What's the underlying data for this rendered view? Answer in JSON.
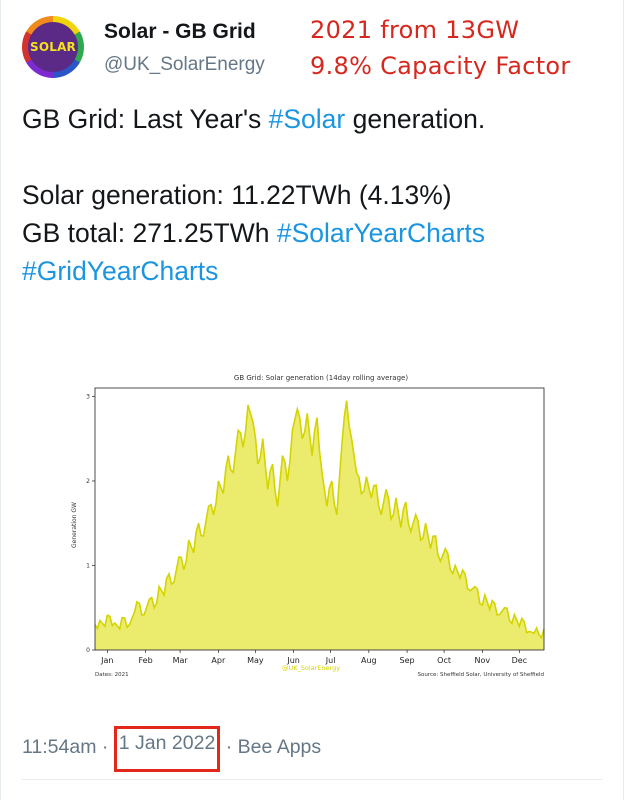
{
  "tweet": {
    "author_name": "Solar - GB Grid",
    "author_handle": "@UK_SolarEnergy",
    "avatar_text": "SOLAR",
    "annotation_line1": "2021 from 13GW",
    "annotation_line2": "9.8% Capacity Factor",
    "text_line1_pre": "GB Grid: Last Year's ",
    "text_line1_tag": "#Solar",
    "text_line1_post": " generation.",
    "text_line2": "Solar generation: 11.22TWh (4.13%)",
    "text_line3_pre": "GB total: 271.25TWh ",
    "text_line3_tag": "#SolarYearCharts",
    "text_line4_tag": "#GridYearCharts",
    "time": "11:54am",
    "separator": "·",
    "date": "1 Jan 2022",
    "client": "Bee Apps"
  },
  "colors": {
    "hashtag": "#1b95e0",
    "annotation": "#d6281f",
    "chart_fill": "#ebeb6e",
    "chart_line": "#d4d400"
  },
  "chart_data": {
    "type": "area",
    "title": "GB Grid: Solar generation (14day rolling average)",
    "ylabel": "Generation GW",
    "xlabel": "",
    "categories": [
      "Jan",
      "Feb",
      "Mar",
      "Apr",
      "May",
      "Jun",
      "Jul",
      "Aug",
      "Sep",
      "Oct",
      "Nov",
      "Dec"
    ],
    "yticks": [
      "0",
      "1",
      "2",
      "3"
    ],
    "ylim": [
      0,
      3.1
    ],
    "footer_left": "Dates: 2021",
    "footer_right": "Source: Sheffield Solar, University of Sheffield",
    "watermark": "@UK_SolarEnergy",
    "series": [
      {
        "x": [
          0,
          4,
          8,
          12,
          16,
          20,
          24,
          28,
          32,
          36,
          40,
          44,
          48,
          52,
          56,
          60,
          64,
          68,
          72,
          76,
          80,
          84,
          88,
          92,
          96,
          100,
          104,
          108,
          112,
          116,
          120,
          124,
          128,
          132,
          136,
          140,
          144,
          148,
          152,
          156,
          160,
          164,
          168,
          172,
          176,
          180,
          184,
          188,
          192,
          196,
          200,
          204,
          208,
          212,
          216,
          220,
          224,
          228,
          232,
          236,
          240,
          244,
          248,
          252,
          256,
          260,
          264,
          268,
          272,
          276,
          280,
          284,
          288,
          292,
          296,
          300,
          304,
          308,
          312,
          316,
          320,
          324,
          328,
          332,
          336,
          340,
          344,
          348,
          352,
          356,
          360,
          364
        ],
        "values": [
          0.3,
          0.35,
          0.28,
          0.4,
          0.32,
          0.25,
          0.38,
          0.3,
          0.45,
          0.55,
          0.42,
          0.6,
          0.5,
          0.75,
          0.65,
          0.9,
          0.8,
          1.1,
          0.95,
          1.3,
          1.15,
          1.5,
          1.35,
          1.7,
          1.6,
          2.0,
          1.85,
          2.3,
          2.1,
          2.6,
          2.4,
          2.9,
          2.7,
          2.2,
          2.5,
          1.9,
          2.2,
          1.7,
          2.3,
          2.0,
          2.6,
          2.85,
          2.5,
          2.8,
          2.3,
          2.75,
          2.1,
          1.7,
          2.0,
          1.6,
          2.4,
          2.95,
          2.5,
          2.1,
          1.85,
          2.05,
          1.8,
          1.95,
          1.6,
          1.9,
          1.55,
          1.8,
          1.45,
          1.75,
          1.4,
          1.6,
          1.3,
          1.5,
          1.2,
          1.35,
          1.05,
          1.2,
          0.95,
          1.0,
          0.85,
          0.9,
          0.7,
          0.75,
          0.55,
          0.65,
          0.48,
          0.55,
          0.42,
          0.5,
          0.35,
          0.42,
          0.28,
          0.33,
          0.22,
          0.2,
          0.18,
          0.25
        ]
      }
    ]
  }
}
